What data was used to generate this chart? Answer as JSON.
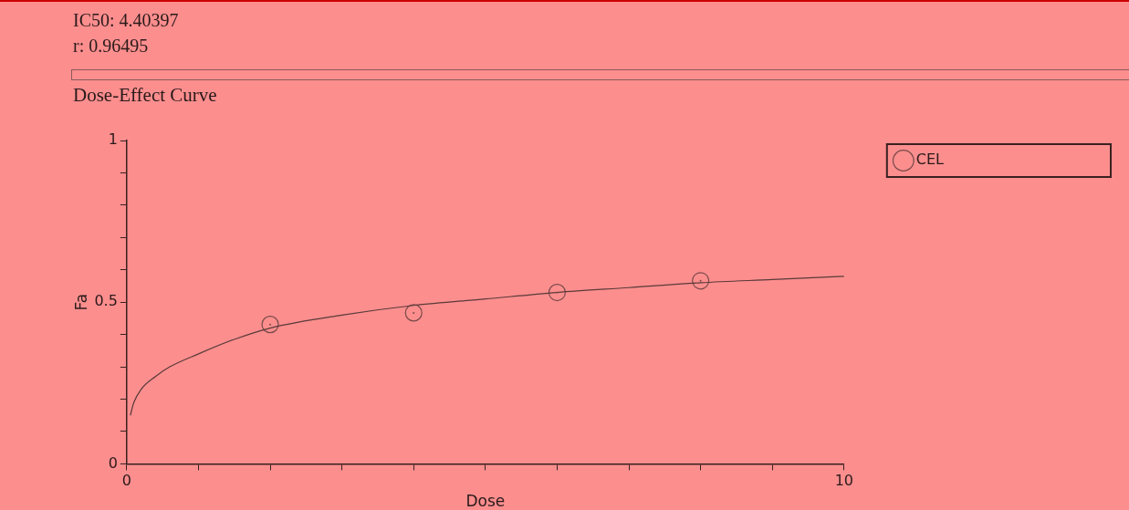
{
  "chart_data": {
    "type": "scatter",
    "title": "Dose-Effect Curve",
    "xlabel": "Dose",
    "ylabel": "Fa",
    "annotations": [
      "IC50: 4.40397",
      "r: 0.96495"
    ],
    "xlim": [
      0,
      10
    ],
    "xticks": [
      0,
      {
        "value": 1,
        "label": null
      },
      {
        "value": 2,
        "label": null
      },
      {
        "value": 3,
        "label": null
      },
      {
        "value": 4,
        "label": null
      },
      {
        "value": 5,
        "label": null
      },
      {
        "value": 6,
        "label": null
      },
      {
        "value": 7,
        "label": null
      },
      {
        "value": 8,
        "label": null
      },
      {
        "value": 9,
        "label": null
      },
      10
    ],
    "ylim": [
      0,
      1
    ],
    "yticks": [
      0,
      {
        "value": 0.1,
        "label": null
      },
      {
        "value": 0.2,
        "label": null
      },
      {
        "value": 0.3,
        "label": null
      },
      {
        "value": 0.4,
        "label": null
      },
      0.5,
      {
        "value": 0.6,
        "label": null
      },
      {
        "value": 0.7,
        "label": null
      },
      {
        "value": 0.8,
        "label": null
      },
      {
        "value": 0.9,
        "label": null
      },
      1
    ],
    "grid": false,
    "legend": "top right",
    "line_style": "solid",
    "series": [
      {
        "type": "line",
        "marker": "none",
        "color": "#5a3a3a",
        "x": [
          0.05,
          0.1,
          0.2,
          0.4,
          0.6,
          1,
          1.5,
          2,
          3,
          4,
          5,
          6,
          7,
          8,
          9,
          10
        ],
        "values": [
          0.15,
          0.19,
          0.23,
          0.27,
          0.3,
          0.34,
          0.385,
          0.42,
          0.46,
          0.49,
          0.51,
          0.53,
          0.545,
          0.56,
          0.57,
          0.58
        ]
      },
      {
        "type": "scatter",
        "marker": "circle",
        "name": "CEL",
        "color": "#7a4a4a",
        "x": [
          2,
          4,
          6,
          8
        ],
        "values": [
          0.431,
          0.467,
          0.53,
          0.566
        ]
      }
    ]
  }
}
